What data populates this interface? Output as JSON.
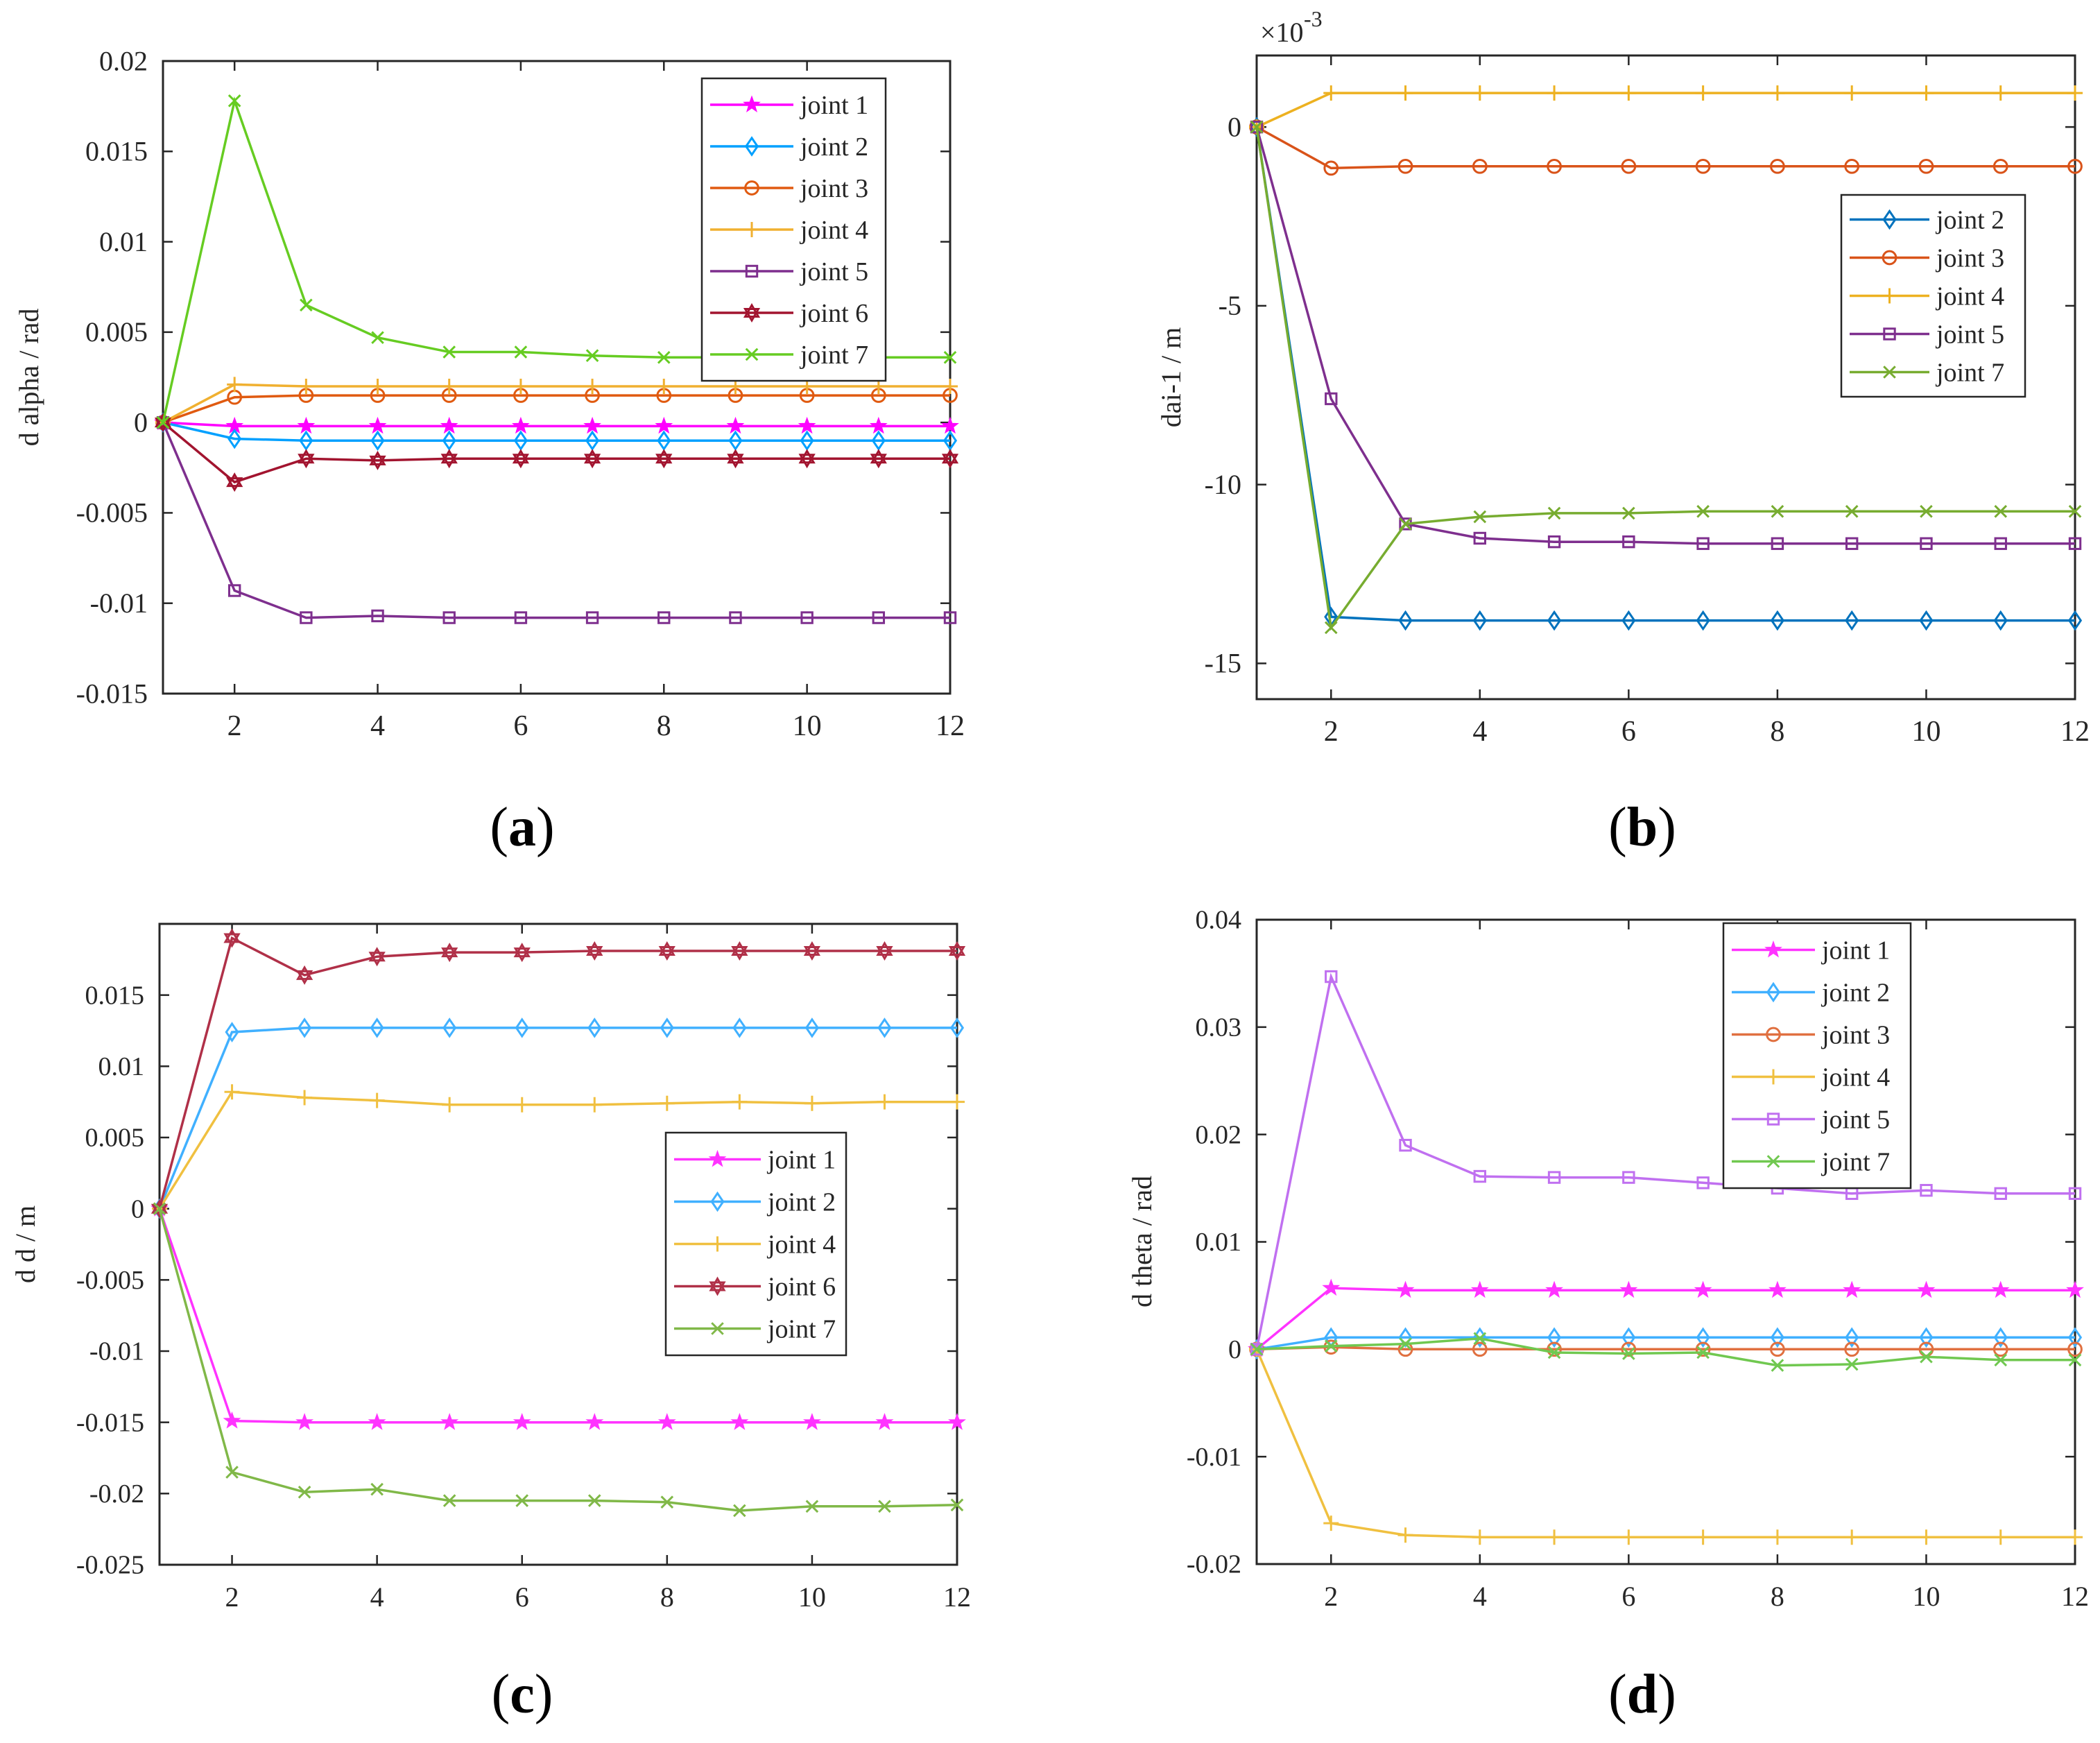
{
  "figure_captions": [
    {
      "open": "(",
      "letter": "a",
      "close": ")"
    },
    {
      "open": "(",
      "letter": "b",
      "close": ")"
    },
    {
      "open": "(",
      "letter": "c",
      "close": ")"
    },
    {
      "open": "(",
      "letter": "d",
      "close": ")"
    }
  ],
  "chart_data": [
    {
      "id": "a",
      "type": "line",
      "title": "",
      "xlabel": "",
      "ylabel": "d alpha / rad",
      "xlim": [
        1,
        12
      ],
      "ylim": [
        -0.015,
        0.02
      ],
      "x": [
        1,
        2,
        3,
        4,
        5,
        6,
        7,
        8,
        9,
        10,
        11,
        12
      ],
      "xticks": [
        2,
        4,
        6,
        8,
        10,
        12
      ],
      "xtick_labels": [
        "2",
        "4",
        "6",
        "8",
        "10",
        "12"
      ],
      "yticks": [
        -0.015,
        -0.01,
        -0.005,
        0,
        0.005,
        0.01,
        0.015,
        0.02
      ],
      "ytick_labels": [
        "-0.015",
        "-0.01",
        "-0.005",
        "0",
        "0.005",
        "0.01",
        "0.015",
        "0.02"
      ],
      "exponent_label": "",
      "legend_position": "top-right",
      "series": [
        {
          "name": "joint 1",
          "color": "#ff00ff",
          "marker": "star",
          "values": [
            0,
            -0.0002,
            -0.0002,
            -0.0002,
            -0.0002,
            -0.0002,
            -0.0002,
            -0.0002,
            -0.0002,
            -0.0002,
            -0.0002,
            -0.0002
          ]
        },
        {
          "name": "joint 2",
          "color": "#00a0ff",
          "marker": "diamond",
          "values": [
            0,
            -0.0009,
            -0.001,
            -0.001,
            -0.001,
            -0.001,
            -0.001,
            -0.001,
            -0.001,
            -0.001,
            -0.001,
            -0.001
          ]
        },
        {
          "name": "joint 3",
          "color": "#e05a10",
          "marker": "circle",
          "values": [
            0,
            0.0014,
            0.0015,
            0.0015,
            0.0015,
            0.0015,
            0.0015,
            0.0015,
            0.0015,
            0.0015,
            0.0015,
            0.0015
          ]
        },
        {
          "name": "joint 4",
          "color": "#f0b030",
          "marker": "plus",
          "values": [
            0,
            0.0021,
            0.002,
            0.002,
            0.002,
            0.002,
            0.002,
            0.002,
            0.002,
            0.002,
            0.002,
            0.002
          ]
        },
        {
          "name": "joint 5",
          "color": "#7e2f8e",
          "marker": "square",
          "values": [
            0,
            -0.0093,
            -0.0108,
            -0.0107,
            -0.0108,
            -0.0108,
            -0.0108,
            -0.0108,
            -0.0108,
            -0.0108,
            -0.0108,
            -0.0108
          ]
        },
        {
          "name": "joint 6",
          "color": "#a2142f",
          "marker": "hexagram",
          "values": [
            0,
            -0.0033,
            -0.002,
            -0.0021,
            -0.002,
            -0.002,
            -0.002,
            -0.002,
            -0.002,
            -0.002,
            -0.002,
            -0.002
          ]
        },
        {
          "name": "joint 7",
          "color": "#66cc22",
          "marker": "x",
          "values": [
            0,
            0.0178,
            0.0065,
            0.0047,
            0.0039,
            0.0039,
            0.0037,
            0.0036,
            0.0036,
            0.0036,
            0.0036,
            0.0036
          ]
        }
      ]
    },
    {
      "id": "b",
      "type": "line",
      "title": "",
      "xlabel": "",
      "ylabel": "dai-1 / m",
      "xlim": [
        1,
        12
      ],
      "ylim": [
        -16,
        2
      ],
      "x": [
        1,
        2,
        3,
        4,
        5,
        6,
        7,
        8,
        9,
        10,
        11,
        12
      ],
      "xticks": [
        2,
        4,
        6,
        8,
        10,
        12
      ],
      "xtick_labels": [
        "2",
        "4",
        "6",
        "8",
        "10",
        "12"
      ],
      "yticks": [
        -15,
        -10,
        -5,
        0
      ],
      "ytick_labels": [
        "-15",
        "-10",
        "-5",
        "0"
      ],
      "exponent_label": "×10",
      "exponent_power": "-3",
      "legend_position": "right",
      "series": [
        {
          "name": "joint 2",
          "color": "#0072bd",
          "marker": "diamond",
          "values": [
            0,
            -13.7,
            -13.8,
            -13.8,
            -13.8,
            -13.8,
            -13.8,
            -13.8,
            -13.8,
            -13.8,
            -13.8,
            -13.8
          ]
        },
        {
          "name": "joint 3",
          "color": "#d95319",
          "marker": "circle",
          "values": [
            0,
            -1.15,
            -1.1,
            -1.1,
            -1.1,
            -1.1,
            -1.1,
            -1.1,
            -1.1,
            -1.1,
            -1.1,
            -1.1
          ]
        },
        {
          "name": "joint 4",
          "color": "#edb120",
          "marker": "plus",
          "values": [
            0,
            0.95,
            0.95,
            0.95,
            0.95,
            0.95,
            0.95,
            0.95,
            0.95,
            0.95,
            0.95,
            0.95
          ]
        },
        {
          "name": "joint 5",
          "color": "#7e2f8e",
          "marker": "square",
          "values": [
            0,
            -7.6,
            -11.1,
            -11.5,
            -11.6,
            -11.6,
            -11.65,
            -11.65,
            -11.65,
            -11.65,
            -11.65,
            -11.65
          ]
        },
        {
          "name": "joint 7",
          "color": "#77ac30",
          "marker": "x",
          "values": [
            0,
            -14.0,
            -11.1,
            -10.9,
            -10.8,
            -10.8,
            -10.75,
            -10.75,
            -10.75,
            -10.75,
            -10.75,
            -10.75
          ]
        }
      ]
    },
    {
      "id": "c",
      "type": "line",
      "title": "",
      "xlabel": "",
      "ylabel": "d d / m",
      "xlim": [
        1,
        12
      ],
      "ylim": [
        -0.025,
        0.02
      ],
      "x": [
        1,
        2,
        3,
        4,
        5,
        6,
        7,
        8,
        9,
        10,
        11,
        12
      ],
      "xticks": [
        2,
        4,
        6,
        8,
        10,
        12
      ],
      "xtick_labels": [
        "2",
        "4",
        "6",
        "8",
        "10",
        "12"
      ],
      "yticks": [
        -0.025,
        -0.02,
        -0.015,
        -0.01,
        -0.005,
        0,
        0.005,
        0.01,
        0.015
      ],
      "ytick_labels": [
        "-0.025",
        "-0.02",
        "-0.015",
        "-0.01",
        "-0.005",
        "0",
        "0.005",
        "0.01",
        "0.015"
      ],
      "exponent_label": "",
      "legend_position": "center-right",
      "series": [
        {
          "name": "joint 1",
          "color": "#ff33ff",
          "marker": "star",
          "values": [
            0,
            -0.0149,
            -0.015,
            -0.015,
            -0.015,
            -0.015,
            -0.015,
            -0.015,
            -0.015,
            -0.015,
            -0.015,
            -0.015
          ]
        },
        {
          "name": "joint 2",
          "color": "#40b0ff",
          "marker": "diamond",
          "values": [
            0,
            0.0124,
            0.0127,
            0.0127,
            0.0127,
            0.0127,
            0.0127,
            0.0127,
            0.0127,
            0.0127,
            0.0127,
            0.0127
          ]
        },
        {
          "name": "joint 4",
          "color": "#f0c040",
          "marker": "plus",
          "values": [
            0,
            0.0082,
            0.0078,
            0.0076,
            0.0073,
            0.0073,
            0.0073,
            0.0074,
            0.0075,
            0.0074,
            0.0075,
            0.0075
          ]
        },
        {
          "name": "joint 6",
          "color": "#b03048",
          "marker": "hexagram",
          "values": [
            0,
            0.019,
            0.0164,
            0.0177,
            0.018,
            0.018,
            0.0181,
            0.0181,
            0.0181,
            0.0181,
            0.0181,
            0.0181
          ]
        },
        {
          "name": "joint 7",
          "color": "#80b848",
          "marker": "x",
          "values": [
            0,
            -0.0185,
            -0.0199,
            -0.0197,
            -0.0205,
            -0.0205,
            -0.0205,
            -0.0206,
            -0.0212,
            -0.0209,
            -0.0209,
            -0.0208
          ]
        }
      ]
    },
    {
      "id": "d",
      "type": "line",
      "title": "",
      "xlabel": "",
      "ylabel": "d theta / rad",
      "xlim": [
        1,
        12
      ],
      "ylim": [
        -0.02,
        0.04
      ],
      "x": [
        1,
        2,
        3,
        4,
        5,
        6,
        7,
        8,
        9,
        10,
        11,
        12
      ],
      "xticks": [
        2,
        4,
        6,
        8,
        10,
        12
      ],
      "xtick_labels": [
        "2",
        "4",
        "6",
        "8",
        "10",
        "12"
      ],
      "yticks": [
        -0.02,
        -0.01,
        0,
        0.01,
        0.02,
        0.03,
        0.04
      ],
      "ytick_labels": [
        "-0.02",
        "-0.01",
        "0",
        "0.01",
        "0.02",
        "0.03",
        "0.04"
      ],
      "exponent_label": "",
      "legend_position": "top-center",
      "series": [
        {
          "name": "joint 1",
          "color": "#ff33ff",
          "marker": "star",
          "values": [
            0,
            0.0057,
            0.0055,
            0.0055,
            0.0055,
            0.0055,
            0.0055,
            0.0055,
            0.0055,
            0.0055,
            0.0055,
            0.0055
          ]
        },
        {
          "name": "joint 2",
          "color": "#40b0ff",
          "marker": "diamond",
          "values": [
            0,
            0.0011,
            0.0011,
            0.0011,
            0.0011,
            0.0011,
            0.0011,
            0.0011,
            0.0011,
            0.0011,
            0.0011,
            0.0011
          ]
        },
        {
          "name": "joint 3",
          "color": "#e07040",
          "marker": "circle",
          "values": [
            0,
            0.0002,
            0,
            0,
            0,
            0,
            0,
            0,
            0,
            0,
            0,
            0
          ]
        },
        {
          "name": "joint 4",
          "color": "#f0c040",
          "marker": "plus",
          "values": [
            0,
            -0.0162,
            -0.0173,
            -0.0175,
            -0.0175,
            -0.0175,
            -0.0175,
            -0.0175,
            -0.0175,
            -0.0175,
            -0.0175,
            -0.0175
          ]
        },
        {
          "name": "joint 5",
          "color": "#c070f0",
          "marker": "square",
          "values": [
            0,
            0.0347,
            0.019,
            0.0161,
            0.016,
            0.016,
            0.0155,
            0.015,
            0.0145,
            0.0148,
            0.0145,
            0.0145
          ]
        },
        {
          "name": "joint 7",
          "color": "#70c850",
          "marker": "x",
          "values": [
            0,
            0.0003,
            0.0005,
            0.001,
            -0.0003,
            -0.0004,
            -0.0003,
            -0.0015,
            -0.0014,
            -0.0007,
            -0.001,
            -0.001
          ]
        }
      ]
    }
  ]
}
